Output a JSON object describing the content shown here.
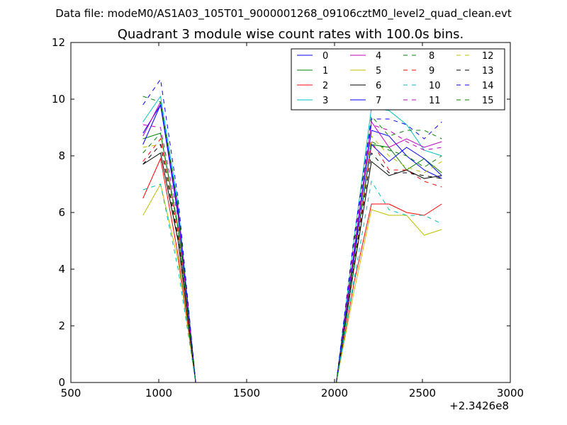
{
  "header": {
    "data_file_label": "Data file: modeM0/AS1A03_105T01_9000001268_09106cztM0_level2_quad_clean.evt"
  },
  "chart_data": {
    "type": "line",
    "title": "Quadrant 3 module wise count rates with 100.0s bins.",
    "xlabel": "",
    "ylabel": "",
    "x_offset_label": "+2.3426e8",
    "xlim": [
      500,
      3000
    ],
    "ylim": [
      0,
      12
    ],
    "xticks": [
      500,
      1000,
      1500,
      2000,
      2500,
      3000
    ],
    "yticks": [
      0,
      2,
      4,
      6,
      8,
      10,
      12
    ],
    "legend_position": "top-right",
    "legend_columns": 4,
    "x": [
      910,
      1010,
      1110,
      1210,
      1310,
      1410,
      1510,
      1610,
      1710,
      1810,
      1910,
      2010,
      2110,
      2210,
      2310,
      2410,
      2510,
      2610
    ],
    "series": [
      {
        "name": "0",
        "color": "#0000ff",
        "dash": false,
        "values": [
          8.8,
          9.8,
          6.0,
          0,
          0,
          0,
          0,
          0,
          0,
          0,
          0,
          0,
          4.5,
          8.9,
          8.7,
          8.0,
          7.5,
          7.2
        ]
      },
      {
        "name": "1",
        "color": "#008000",
        "dash": false,
        "values": [
          8.6,
          8.8,
          5.5,
          0,
          0,
          0,
          0,
          0,
          0,
          0,
          0,
          0,
          4.3,
          8.4,
          8.3,
          7.5,
          7.9,
          7.4
        ]
      },
      {
        "name": "2",
        "color": "#ff0000",
        "dash": false,
        "values": [
          6.5,
          7.9,
          4.5,
          0,
          0,
          0,
          0,
          0,
          0,
          0,
          0,
          0,
          3.5,
          6.3,
          6.3,
          6.0,
          5.9,
          6.3
        ]
      },
      {
        "name": "3",
        "color": "#00bfbf",
        "dash": false,
        "values": [
          9.2,
          10.1,
          6.3,
          0,
          0,
          0,
          0,
          0,
          0,
          0,
          0,
          0,
          5.0,
          9.7,
          9.6,
          9.1,
          8.2,
          8.0
        ]
      },
      {
        "name": "4",
        "color": "#bf00bf",
        "dash": false,
        "values": [
          8.7,
          9.9,
          6.1,
          0,
          0,
          0,
          0,
          0,
          0,
          0,
          0,
          0,
          4.6,
          9.2,
          8.3,
          8.6,
          8.3,
          8.5
        ]
      },
      {
        "name": "5",
        "color": "#bfbf00",
        "dash": false,
        "values": [
          5.9,
          7.0,
          4.3,
          0,
          0,
          0,
          0,
          0,
          0,
          0,
          0,
          0,
          3.2,
          6.1,
          5.9,
          5.9,
          5.2,
          5.4
        ]
      },
      {
        "name": "6",
        "color": "#000000",
        "dash": false,
        "values": [
          7.7,
          8.1,
          5.0,
          0,
          0,
          0,
          0,
          0,
          0,
          0,
          0,
          0,
          4.0,
          7.8,
          7.3,
          7.5,
          7.2,
          7.3
        ]
      },
      {
        "name": "7",
        "color": "#0000ff",
        "dash": false,
        "values": [
          8.4,
          9.8,
          5.9,
          0,
          0,
          0,
          0,
          0,
          0,
          0,
          0,
          0,
          4.4,
          8.4,
          7.8,
          8.3,
          7.9,
          7.3
        ]
      },
      {
        "name": "8",
        "color": "#008000",
        "dash": true,
        "values": [
          10.1,
          9.9,
          6.2,
          0,
          0,
          0,
          0,
          0,
          0,
          0,
          0,
          0,
          4.9,
          9.4,
          8.7,
          8.9,
          8.9,
          8.6
        ]
      },
      {
        "name": "9",
        "color": "#ff0000",
        "dash": true,
        "values": [
          7.8,
          8.6,
          5.3,
          0,
          0,
          0,
          0,
          0,
          0,
          0,
          0,
          0,
          4.0,
          8.5,
          7.5,
          7.5,
          7.1,
          6.9
        ]
      },
      {
        "name": "10",
        "color": "#00bfbf",
        "dash": true,
        "values": [
          6.8,
          7.0,
          4.0,
          0,
          0,
          0,
          0,
          0,
          0,
          0,
          0,
          0,
          3.6,
          7.1,
          6.1,
          5.9,
          5.9,
          5.6
        ]
      },
      {
        "name": "11",
        "color": "#bf00bf",
        "dash": true,
        "values": [
          9.1,
          9.0,
          5.8,
          0,
          0,
          0,
          0,
          0,
          0,
          0,
          0,
          0,
          4.8,
          9.1,
          8.9,
          8.5,
          8.2,
          8.3
        ]
      },
      {
        "name": "12",
        "color": "#bfbf00",
        "dash": true,
        "values": [
          8.3,
          8.4,
          5.2,
          0,
          0,
          0,
          0,
          0,
          0,
          0,
          0,
          0,
          4.2,
          8.7,
          8.0,
          7.6,
          7.4,
          7.8
        ]
      },
      {
        "name": "13",
        "color": "#000000",
        "dash": true,
        "values": [
          7.7,
          8.4,
          5.1,
          0,
          0,
          0,
          0,
          0,
          0,
          0,
          0,
          0,
          4.1,
          8.1,
          7.4,
          7.4,
          7.3,
          7.2
        ]
      },
      {
        "name": "14",
        "color": "#0000ff",
        "dash": true,
        "values": [
          9.8,
          10.7,
          6.5,
          0,
          0,
          0,
          0,
          0,
          0,
          0,
          0,
          0,
          5.1,
          9.3,
          9.3,
          9.1,
          8.6,
          9.2
        ]
      },
      {
        "name": "15",
        "color": "#008000",
        "dash": true,
        "values": [
          8.1,
          8.8,
          5.4,
          0,
          0,
          0,
          0,
          0,
          0,
          0,
          0,
          0,
          4.3,
          8.5,
          8.2,
          8.0,
          7.6,
          8.0
        ]
      }
    ]
  }
}
